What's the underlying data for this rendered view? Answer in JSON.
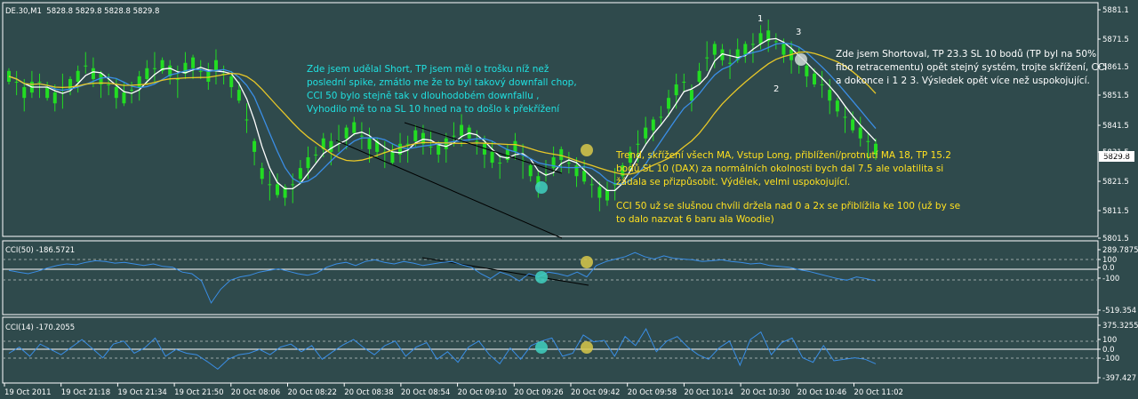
{
  "header": {
    "symbol": "DE.30,M1",
    "ohlc": "5828.8 5829.8 5828.8 5829.8"
  },
  "price_panel": {
    "y_ticks": [
      "5881.1",
      "5871.5",
      "5861.5",
      "5851.5",
      "5841.5",
      "5831.5",
      "5821.5",
      "5811.5",
      "5801.5"
    ],
    "current_price": "5829.8"
  },
  "cci50_panel": {
    "title": "CCI(50) -186.5721",
    "y_ticks": [
      "289.7875",
      "100",
      "0.0",
      "-100",
      "-519.354"
    ]
  },
  "cci14_panel": {
    "title": "CCI(14) -170.2055",
    "y_ticks": [
      "375.3255",
      "100",
      "0.0",
      "-100",
      "-397.427"
    ]
  },
  "x_ticks": [
    "19 Oct 2011",
    "19 Oct 21:18",
    "19 Oct 21:34",
    "19 Oct 21:50",
    "20 Oct 08:06",
    "20 Oct 08:22",
    "20 Oct 08:38",
    "20 Oct 08:54",
    "20 Oct 09:10",
    "20 Oct 09:26",
    "20 Oct 09:42",
    "20 Oct 09:58",
    "20 Oct 10:14",
    "20 Oct 10:30",
    "20 Oct 10:46",
    "20 Oct 11:02"
  ],
  "annotations": {
    "short1": [
      "Zde jsem udělal Short,  TP jsem měl o trošku níž než",
      "poslední spike, zmátlo me že to byl takový downfall chop,",
      "CCI 50 bylo stejně tak v dlouhodobém downfallu ,",
      "Vyhodilo mě to na SL 10 hned na to došlo k překřížení"
    ],
    "long": [
      "Trend, skřížení všech MA, Vstup Long, přiblížení/protnutí  MA 18,  TP 15.2",
      "bodů SL 10 (DAX) za normálních okolnosti bych dal 7.5 ale volatilita si",
      "žádala se přizpůsobit. Výdělek, velmi uspokojující."
    ],
    "cci_note": [
      "CCI 50 už se slušnou chvíli držela nad 0 a 2x se přiblížila ke 100 (už by se",
      "to dalo nazvat 6 baru ala Woodie)"
    ],
    "short2": [
      "Zde jsem Shortoval, TP 23.3 SL 10 bodů (TP byl na 50%",
      "fibo retracementu) opět stejný systém, trojte skřížení, CCI",
      "a dokonce i 1 2 3. Výsledek opět více než uspokojující."
    ],
    "pattern_labels": [
      "1",
      "2",
      "3"
    ]
  },
  "chart_data": [
    {
      "type": "candlestick",
      "title": "DE.30,M1",
      "ylim": [
        5800,
        5883
      ],
      "series": [
        {
          "name": "price",
          "values": [
            5858,
            5856,
            5852,
            5854,
            5856,
            5852,
            5850,
            5853,
            5855,
            5858,
            5862,
            5859,
            5857,
            5855,
            5852,
            5850,
            5853,
            5856,
            5859,
            5861,
            5862,
            5860,
            5857,
            5861,
            5863,
            5860,
            5858,
            5862,
            5859,
            5856,
            5851,
            5842,
            5832,
            5822,
            5818,
            5816,
            5815,
            5818,
            5822,
            5826,
            5829,
            5833,
            5832,
            5834,
            5837,
            5839,
            5836,
            5833,
            5832,
            5830,
            5828,
            5831,
            5833,
            5836,
            5835,
            5832,
            5831,
            5833,
            5836,
            5838,
            5837,
            5834,
            5831,
            5828,
            5826,
            5829,
            5832,
            5827,
            5823,
            5819,
            5822,
            5826,
            5829,
            5826,
            5823,
            5821,
            5818,
            5815,
            5814,
            5818,
            5823,
            5828,
            5833,
            5837,
            5840,
            5843,
            5848,
            5853,
            5856,
            5851,
            5858,
            5865,
            5868,
            5866,
            5863,
            5866,
            5868,
            5870,
            5872,
            5873,
            5871,
            5868,
            5866,
            5863,
            5860,
            5857,
            5855,
            5851,
            5847,
            5843,
            5840,
            5837,
            5834,
            5831
          ]
        }
      ]
    },
    {
      "type": "line",
      "title": "CCI(50) -186.5721",
      "ylim": [
        -519.354,
        289.7875
      ],
      "series": [
        {
          "name": "CCI(50)",
          "values": [
            -20,
            -40,
            -60,
            -30,
            10,
            40,
            60,
            50,
            80,
            100,
            90,
            70,
            80,
            60,
            40,
            60,
            30,
            20,
            -40,
            -60,
            -150,
            -420,
            -250,
            -140,
            -100,
            -80,
            -40,
            -20,
            0,
            -30,
            -60,
            -80,
            -50,
            20,
            60,
            80,
            40,
            90,
            110,
            80,
            60,
            90,
            70,
            40,
            60,
            80,
            90,
            50,
            20,
            -60,
            -120,
            -40,
            -80,
            -150,
            -60,
            -100,
            -40,
            -60,
            -90,
            -40,
            -100,
            40,
            90,
            120,
            150,
            200,
            150,
            120,
            160,
            130,
            120,
            110,
            90,
            100,
            110,
            90,
            80,
            60,
            70,
            40,
            30,
            20,
            -10,
            -30,
            -60,
            -90,
            -120,
            -140,
            -100,
            -120,
            -150
          ]
        }
      ]
    },
    {
      "type": "line",
      "title": "CCI(14) -170.2055",
      "ylim": [
        -397.427,
        375.3255
      ],
      "series": [
        {
          "name": "CCI(14)",
          "values": [
            -40,
            40,
            -80,
            80,
            10,
            -60,
            40,
            140,
            20,
            -100,
            80,
            120,
            -40,
            30,
            160,
            -80,
            10,
            -40,
            -60,
            -150,
            -250,
            -120,
            -60,
            -40,
            10,
            -60,
            40,
            80,
            -20,
            60,
            -120,
            -20,
            70,
            140,
            30,
            -60,
            60,
            120,
            -80,
            40,
            100,
            -120,
            -20,
            -160,
            40,
            120,
            -60,
            -180,
            30,
            -120,
            60,
            120,
            160,
            -80,
            -40,
            200,
            110,
            130,
            -80,
            180,
            60,
            280,
            -20,
            120,
            180,
            40,
            -60,
            -120,
            30,
            120,
            -200,
            140,
            240,
            -60,
            100,
            160,
            -100,
            -160,
            60,
            -140,
            -120,
            -100,
            -120,
            -180
          ]
        }
      ]
    }
  ]
}
